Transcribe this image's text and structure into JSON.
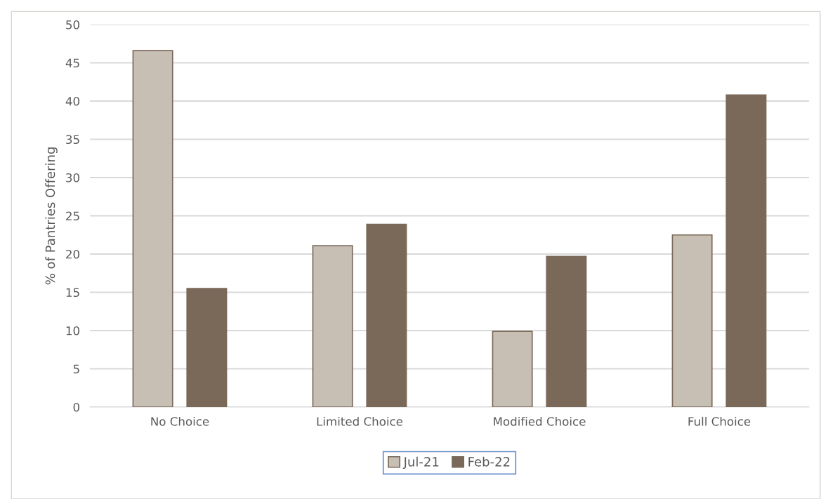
{
  "chart_data": {
    "type": "bar",
    "ylabel": "% of Pantries Offering",
    "categories": [
      "No Choice",
      "Limited Choice",
      "Modified Choice",
      "Full Choice"
    ],
    "series": [
      {
        "name": "Jul-21",
        "color": "#c7beb4",
        "values": [
          46.6,
          21.1,
          9.9,
          22.5
        ]
      },
      {
        "name": "Feb-22",
        "color": "#7a6959",
        "values": [
          15.5,
          23.9,
          19.7,
          40.8
        ]
      }
    ],
    "ylim": [
      0,
      50
    ],
    "yticks": [
      0,
      5,
      10,
      15,
      20,
      25,
      30,
      35,
      40,
      45,
      50
    ],
    "grid": "y",
    "legend": "bottom"
  }
}
